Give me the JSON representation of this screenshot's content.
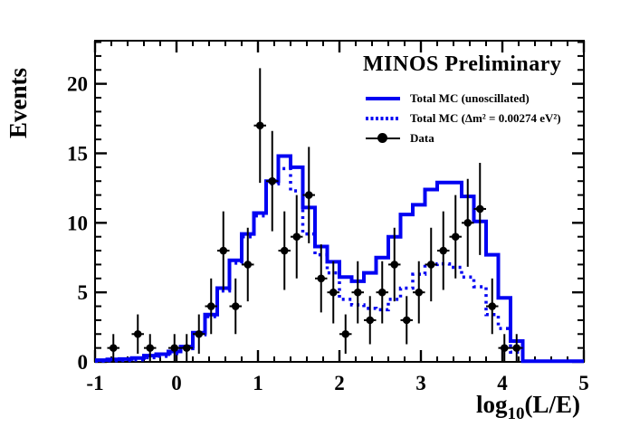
{
  "chart_data": {
    "type": "histogram-overlay-with-errorbars",
    "title": "MINOS Preliminary",
    "ylabel": "Events",
    "xlabel_prefix": "log",
    "xlabel_sub": "10",
    "xlabel_suffix": "(L/E)",
    "xlim": [
      -1,
      5
    ],
    "ylim": [
      0,
      23.1
    ],
    "x_major_ticks": [
      -1,
      0,
      1,
      2,
      3,
      4,
      5
    ],
    "x_tick_labels": [
      "-1",
      "0",
      "1",
      "2",
      "3",
      "4",
      "5"
    ],
    "x_minor_step": 0.2,
    "y_major_ticks": [
      0,
      5,
      10,
      15,
      20
    ],
    "y_tick_labels": [
      "0",
      "5",
      "10",
      "15",
      "20"
    ],
    "y_minor_step": 1,
    "grid": false,
    "legend_position": "top-right-inside",
    "bins": {
      "start": -1,
      "width": 0.15,
      "count": 40
    },
    "colors": {
      "mc_blue": "#0202f2",
      "data_black": "#000000",
      "axis": "#000000",
      "background": "#ffffff"
    },
    "series": [
      {
        "name": "Total MC (unoscillated)",
        "type": "step-histogram",
        "line": "solid",
        "color": "#0202f2",
        "values": [
          0.12,
          0.18,
          0.2,
          0.28,
          0.45,
          0.55,
          0.75,
          1.1,
          2.1,
          3.4,
          5.3,
          7.3,
          9.2,
          10.7,
          13.0,
          14.8,
          14.0,
          11.1,
          8.3,
          7.2,
          6.1,
          5.8,
          6.4,
          7.5,
          9.0,
          10.6,
          11.3,
          12.4,
          12.9,
          12.9,
          11.9,
          10.1,
          7.7,
          4.6,
          1.5,
          0.05,
          0.05,
          0.05,
          0.05,
          0.05
        ]
      },
      {
        "name": "Total MC (Δm² = 0.00274 eV²)",
        "type": "step-histogram",
        "line": "dotted",
        "color": "#0202f2",
        "values": [
          0.05,
          0.08,
          0.1,
          0.15,
          0.3,
          0.4,
          0.6,
          0.95,
          1.95,
          3.25,
          5.1,
          7.1,
          9.0,
          10.5,
          12.8,
          13.9,
          12.3,
          9.2,
          7.7,
          6.4,
          4.5,
          4.1,
          3.85,
          3.75,
          4.5,
          5.3,
          6.3,
          7.0,
          7.05,
          6.8,
          6.1,
          5.4,
          3.4,
          2.4,
          0.7,
          0.05,
          0.05,
          0.05,
          0.05,
          0.05
        ]
      },
      {
        "name": "Data",
        "type": "points-with-errors",
        "marker": "filled-circle",
        "color": "#000000",
        "errors": "sqrt-poisson",
        "values": [
          null,
          1,
          null,
          2,
          1,
          null,
          1,
          1,
          2,
          4,
          8,
          4,
          7,
          17,
          13,
          8,
          9,
          12,
          6,
          5,
          2,
          5,
          3,
          5,
          7,
          3,
          5,
          7,
          8,
          9,
          10,
          11,
          4,
          1,
          1,
          null,
          null,
          null,
          null,
          null
        ]
      }
    ]
  }
}
